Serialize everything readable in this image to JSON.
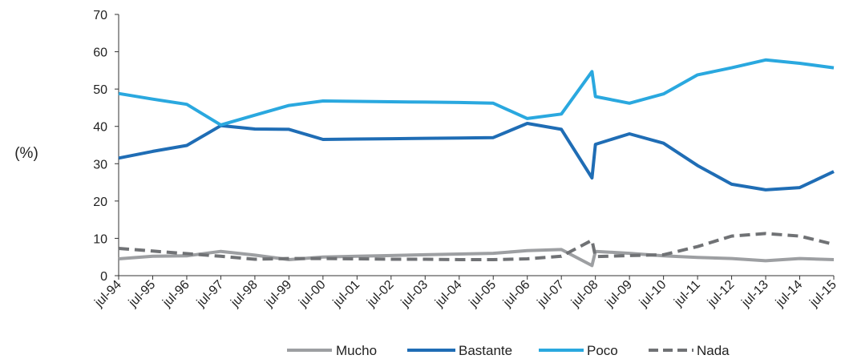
{
  "chart_data": {
    "type": "line",
    "ylabel": "(%)",
    "ylim": [
      0,
      70
    ],
    "yticks": [
      0,
      10,
      20,
      30,
      40,
      50,
      60,
      70
    ],
    "grid": false,
    "legend_position": "bottom",
    "categories": [
      "jul-94",
      "jul-95",
      "jul-96",
      "jul-97",
      "jul-98",
      "jul-99",
      "jul-00",
      "jul-01",
      "jul-02",
      "jul-03",
      "jul-04",
      "jul-05",
      "jul-06",
      "jul-07",
      "jul-08",
      "jul-09",
      "jul-10",
      "jul-11",
      "jul-12",
      "jul-13",
      "jul-14",
      "jul-15"
    ],
    "series": [
      {
        "name": "Mucho",
        "color": "#9d9fa2",
        "dashed": false,
        "points": [
          [
            0,
            4.5
          ],
          [
            1,
            5.2
          ],
          [
            2,
            5.3
          ],
          [
            3,
            6.5
          ],
          [
            4,
            5.5
          ],
          [
            5,
            4.3
          ],
          [
            6,
            5.0
          ],
          [
            7,
            5.2
          ],
          [
            8,
            5.4
          ],
          [
            9,
            5.6
          ],
          [
            10,
            5.8
          ],
          [
            11,
            6.0
          ],
          [
            12,
            6.7
          ],
          [
            13,
            7.0
          ],
          [
            13.9,
            2.7
          ],
          [
            14,
            6.5
          ],
          [
            15,
            6.0
          ],
          [
            16,
            5.3
          ],
          [
            17,
            4.9
          ],
          [
            18,
            4.6
          ],
          [
            19,
            4.0
          ],
          [
            20,
            4.6
          ],
          [
            21,
            4.3
          ]
        ]
      },
      {
        "name": "Bastante",
        "color": "#1f6db5",
        "dashed": false,
        "points": [
          [
            0,
            31.5
          ],
          [
            1,
            33.3
          ],
          [
            2,
            34.9
          ],
          [
            3,
            40.2
          ],
          [
            4,
            39.3
          ],
          [
            5,
            39.2
          ],
          [
            6,
            36.5
          ],
          [
            7,
            36.6
          ],
          [
            8,
            36.7
          ],
          [
            9,
            36.8
          ],
          [
            10,
            36.9
          ],
          [
            11,
            37.0
          ],
          [
            12,
            40.8
          ],
          [
            13,
            39.2
          ],
          [
            13.9,
            26.2
          ],
          [
            14,
            35.2
          ],
          [
            15,
            38.0
          ],
          [
            16,
            35.5
          ],
          [
            17,
            29.5
          ],
          [
            18,
            24.5
          ],
          [
            19,
            23.0
          ],
          [
            20,
            23.6
          ],
          [
            21,
            27.9
          ]
        ]
      },
      {
        "name": "Poco",
        "color": "#2aa8df",
        "dashed": false,
        "points": [
          [
            0,
            48.8
          ],
          [
            1,
            47.3
          ],
          [
            2,
            45.9
          ],
          [
            3,
            40.4
          ],
          [
            4,
            43.0
          ],
          [
            5,
            45.6
          ],
          [
            6,
            46.8
          ],
          [
            7,
            46.7
          ],
          [
            8,
            46.6
          ],
          [
            9,
            46.5
          ],
          [
            10,
            46.4
          ],
          [
            11,
            46.2
          ],
          [
            12,
            42.1
          ],
          [
            13,
            43.3
          ],
          [
            13.9,
            54.7
          ],
          [
            14,
            48.0
          ],
          [
            15,
            46.2
          ],
          [
            16,
            48.7
          ],
          [
            17,
            53.8
          ],
          [
            18,
            55.7
          ],
          [
            19,
            57.8
          ],
          [
            20,
            56.9
          ],
          [
            21,
            55.7
          ]
        ]
      },
      {
        "name": "Nada",
        "color": "#707275",
        "dashed": true,
        "points": [
          [
            0,
            7.3
          ],
          [
            1,
            6.6
          ],
          [
            2,
            5.9
          ],
          [
            3,
            5.2
          ],
          [
            4,
            4.4
          ],
          [
            5,
            4.6
          ],
          [
            6,
            4.6
          ],
          [
            7,
            4.5
          ],
          [
            8,
            4.4
          ],
          [
            9,
            4.4
          ],
          [
            10,
            4.3
          ],
          [
            11,
            4.3
          ],
          [
            12,
            4.5
          ],
          [
            13,
            5.2
          ],
          [
            13.9,
            9.5
          ],
          [
            14,
            5.1
          ],
          [
            15,
            5.4
          ],
          [
            16,
            5.6
          ],
          [
            17,
            7.8
          ],
          [
            18,
            10.6
          ],
          [
            19,
            11.3
          ],
          [
            20,
            10.6
          ],
          [
            21,
            8.4
          ]
        ]
      }
    ]
  }
}
